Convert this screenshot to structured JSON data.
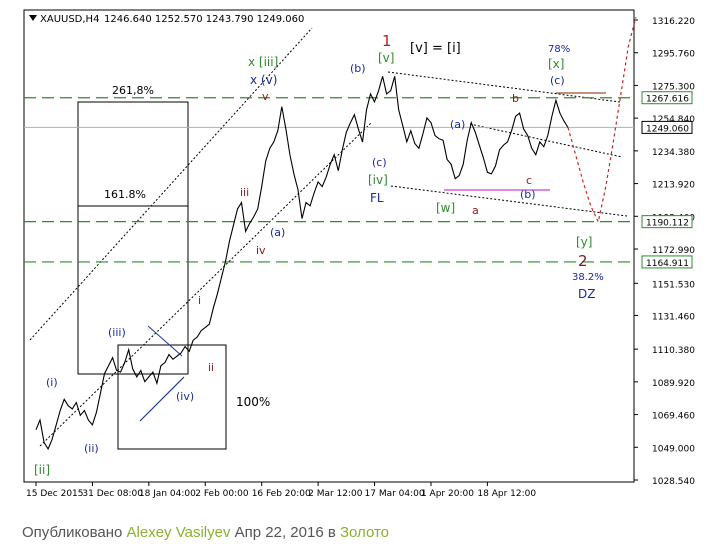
{
  "chart_data": {
    "type": "line",
    "title": "XAUUSD,H4",
    "ohlc_values": "1246.640 1252.570 1243.790 1249.060",
    "ylim": [
      1028.54,
      1316.22
    ],
    "y_ticks": [
      1316.22,
      1295.76,
      1275.3,
      1254.84,
      1234.38,
      1213.92,
      1193.46,
      1172.99,
      1151.53,
      1131.46,
      1110.38,
      1089.92,
      1069.46,
      1049.0,
      1028.54
    ],
    "y_tick_labels": [
      "1316.220",
      "1295.760",
      "1275.300",
      "1254.840",
      "1234.380",
      "1213.920",
      "1193.460",
      "1172.990",
      "1151.530",
      "1131.460",
      "1110.380",
      "1089.920",
      "1069.460",
      "1049.000",
      "1028.540"
    ],
    "x_tick_labels": [
      "15 Dec 2015",
      "31 Dec 08:00",
      "18 Jan 04:00",
      "2 Feb 00:00",
      "16 Feb 20:00",
      "2 Mar 12:00",
      "17 Mar 04:00",
      "1 Apr 20:00",
      "18 Apr 12:00"
    ],
    "x_tick_index": [
      0,
      14,
      28,
      42,
      56,
      70,
      84,
      98,
      112
    ],
    "series": [
      {
        "values": [
          1060,
          1066,
          1052,
          1048,
          1054,
          1063,
          1072,
          1079,
          1075,
          1073,
          1077,
          1069,
          1072,
          1066,
          1063,
          1071,
          1083,
          1095,
          1100,
          1105,
          1097,
          1096,
          1102,
          1110,
          1098,
          1093,
          1097,
          1090,
          1093,
          1096,
          1089,
          1100,
          1102,
          1107,
          1104,
          1106,
          1108,
          1112,
          1109,
          1116,
          1118,
          1122,
          1124,
          1126,
          1136,
          1145,
          1155,
          1165,
          1178,
          1188,
          1198,
          1202,
          1184,
          1189,
          1193,
          1198,
          1212,
          1228,
          1236,
          1240,
          1247,
          1262,
          1248,
          1232,
          1220,
          1210,
          1192,
          1202,
          1200,
          1208,
          1215,
          1212,
          1218,
          1226,
          1232,
          1222,
          1235,
          1246,
          1252,
          1257,
          1248,
          1240,
          1260,
          1270,
          1265,
          1272,
          1281,
          1270,
          1272,
          1281,
          1260,
          1250,
          1240,
          1247,
          1239,
          1236,
          1245,
          1255,
          1252,
          1244,
          1242,
          1241,
          1229,
          1226,
          1217,
          1219,
          1226,
          1241,
          1252,
          1246,
          1238,
          1230,
          1221,
          1220,
          1225,
          1235,
          1238,
          1240,
          1247,
          1256,
          1258,
          1248,
          1244,
          1236,
          1232,
          1240,
          1237,
          1244,
          1256,
          1266,
          1258,
          1253,
          1249
        ]
      }
    ],
    "projection": [
      1249,
      1232,
      1215,
      1200,
      1190,
      1212,
      1240,
      1270,
      1300,
      1318
    ],
    "hlines": [
      {
        "value": 1267.616,
        "label": "1267.616"
      },
      {
        "value": 1190.112,
        "label": "1190.112"
      },
      {
        "value": 1164.911,
        "label": "1164.911"
      }
    ],
    "current_price": "1249.060",
    "fib_labels": {
      "f261": "261,8%",
      "f161": "161.8%",
      "f100": "100%"
    },
    "annotations": {
      "ii_bottom": "[ii]",
      "ii_small": "(ii)",
      "i_small": "(i)",
      "iii_small": "(iii)",
      "iv_small": "(iv)",
      "ii_roman": "ii",
      "i_roman": "i",
      "iii_roman": "iii",
      "iv_roman": "iv",
      "v_roman": "v",
      "iii_green": "x [iii]",
      "xv": "x (v)",
      "a_small": "(a)",
      "one": "1",
      "v_green": "[v]",
      "b_top": "(b)",
      "c_left": "(c)",
      "iv_green": "[iv]",
      "fl": "FL",
      "v_eq_i": "[v] = [i]",
      "a_mid": "(a)",
      "w_green": "[w]",
      "a_red": "a",
      "b_red": "b",
      "c_red": "c",
      "b_mid": "(b)",
      "pct78": "78%",
      "x_green": "[x]",
      "c_right": "(c)",
      "y_green": "[y]",
      "two": "2",
      "pct38": "38.2%",
      "dz": "DZ"
    }
  },
  "footer": {
    "prefix": "Опубликовано ",
    "author": "Alexey Vasilyev",
    "date": " Апр 22, 2016 в ",
    "category": "Золото"
  }
}
